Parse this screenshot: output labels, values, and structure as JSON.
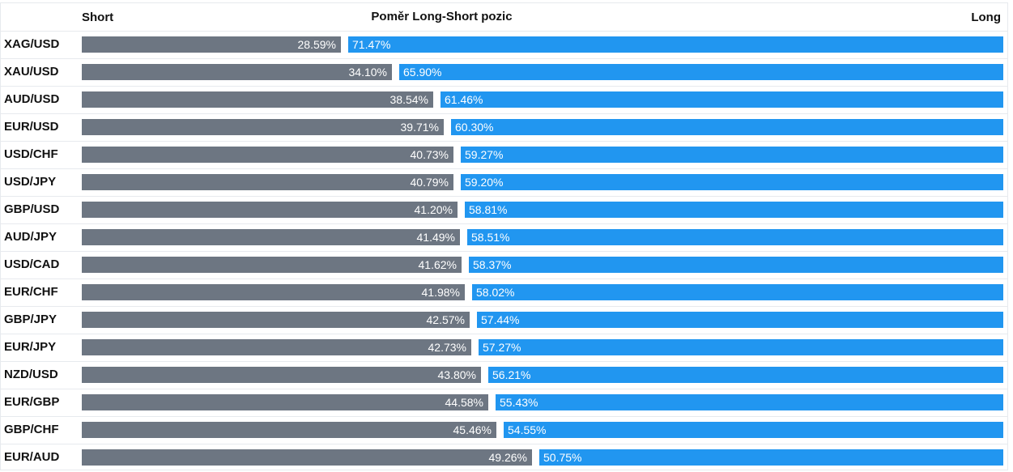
{
  "header": {
    "short_label": "Short",
    "title": "Poměr Long-Short pozic",
    "long_label": "Long"
  },
  "colors": {
    "short": "#6d7682",
    "long": "#2196f0"
  },
  "chart_data": {
    "type": "bar",
    "title": "Poměr Long-Short pozic",
    "categories": [
      "XAG/USD",
      "XAU/USD",
      "AUD/USD",
      "EUR/USD",
      "USD/CHF",
      "USD/JPY",
      "GBP/USD",
      "AUD/JPY",
      "USD/CAD",
      "EUR/CHF",
      "GBP/JPY",
      "EUR/JPY",
      "NZD/USD",
      "EUR/GBP",
      "GBP/CHF",
      "EUR/AUD"
    ],
    "series": [
      {
        "name": "Short",
        "values": [
          28.59,
          34.1,
          38.54,
          39.71,
          40.73,
          40.79,
          41.2,
          41.49,
          41.62,
          41.98,
          42.57,
          42.73,
          43.8,
          44.58,
          45.46,
          49.26
        ],
        "labels": [
          "28.59%",
          "34.10%",
          "38.54%",
          "39.71%",
          "40.73%",
          "40.79%",
          "41.20%",
          "41.49%",
          "41.62%",
          "41.98%",
          "42.57%",
          "42.73%",
          "43.80%",
          "44.58%",
          "45.46%",
          "49.26%"
        ]
      },
      {
        "name": "Long",
        "values": [
          71.47,
          65.9,
          61.46,
          60.3,
          59.27,
          59.2,
          58.81,
          58.51,
          58.37,
          58.02,
          57.44,
          57.27,
          56.21,
          55.43,
          54.55,
          50.75
        ],
        "labels": [
          "71.47%",
          "65.90%",
          "61.46%",
          "60.30%",
          "59.27%",
          "59.20%",
          "58.81%",
          "58.51%",
          "58.37%",
          "58.02%",
          "57.44%",
          "57.27%",
          "56.21%",
          "55.43%",
          "54.55%",
          "50.75%"
        ]
      }
    ],
    "ylim": [
      0,
      100
    ]
  }
}
